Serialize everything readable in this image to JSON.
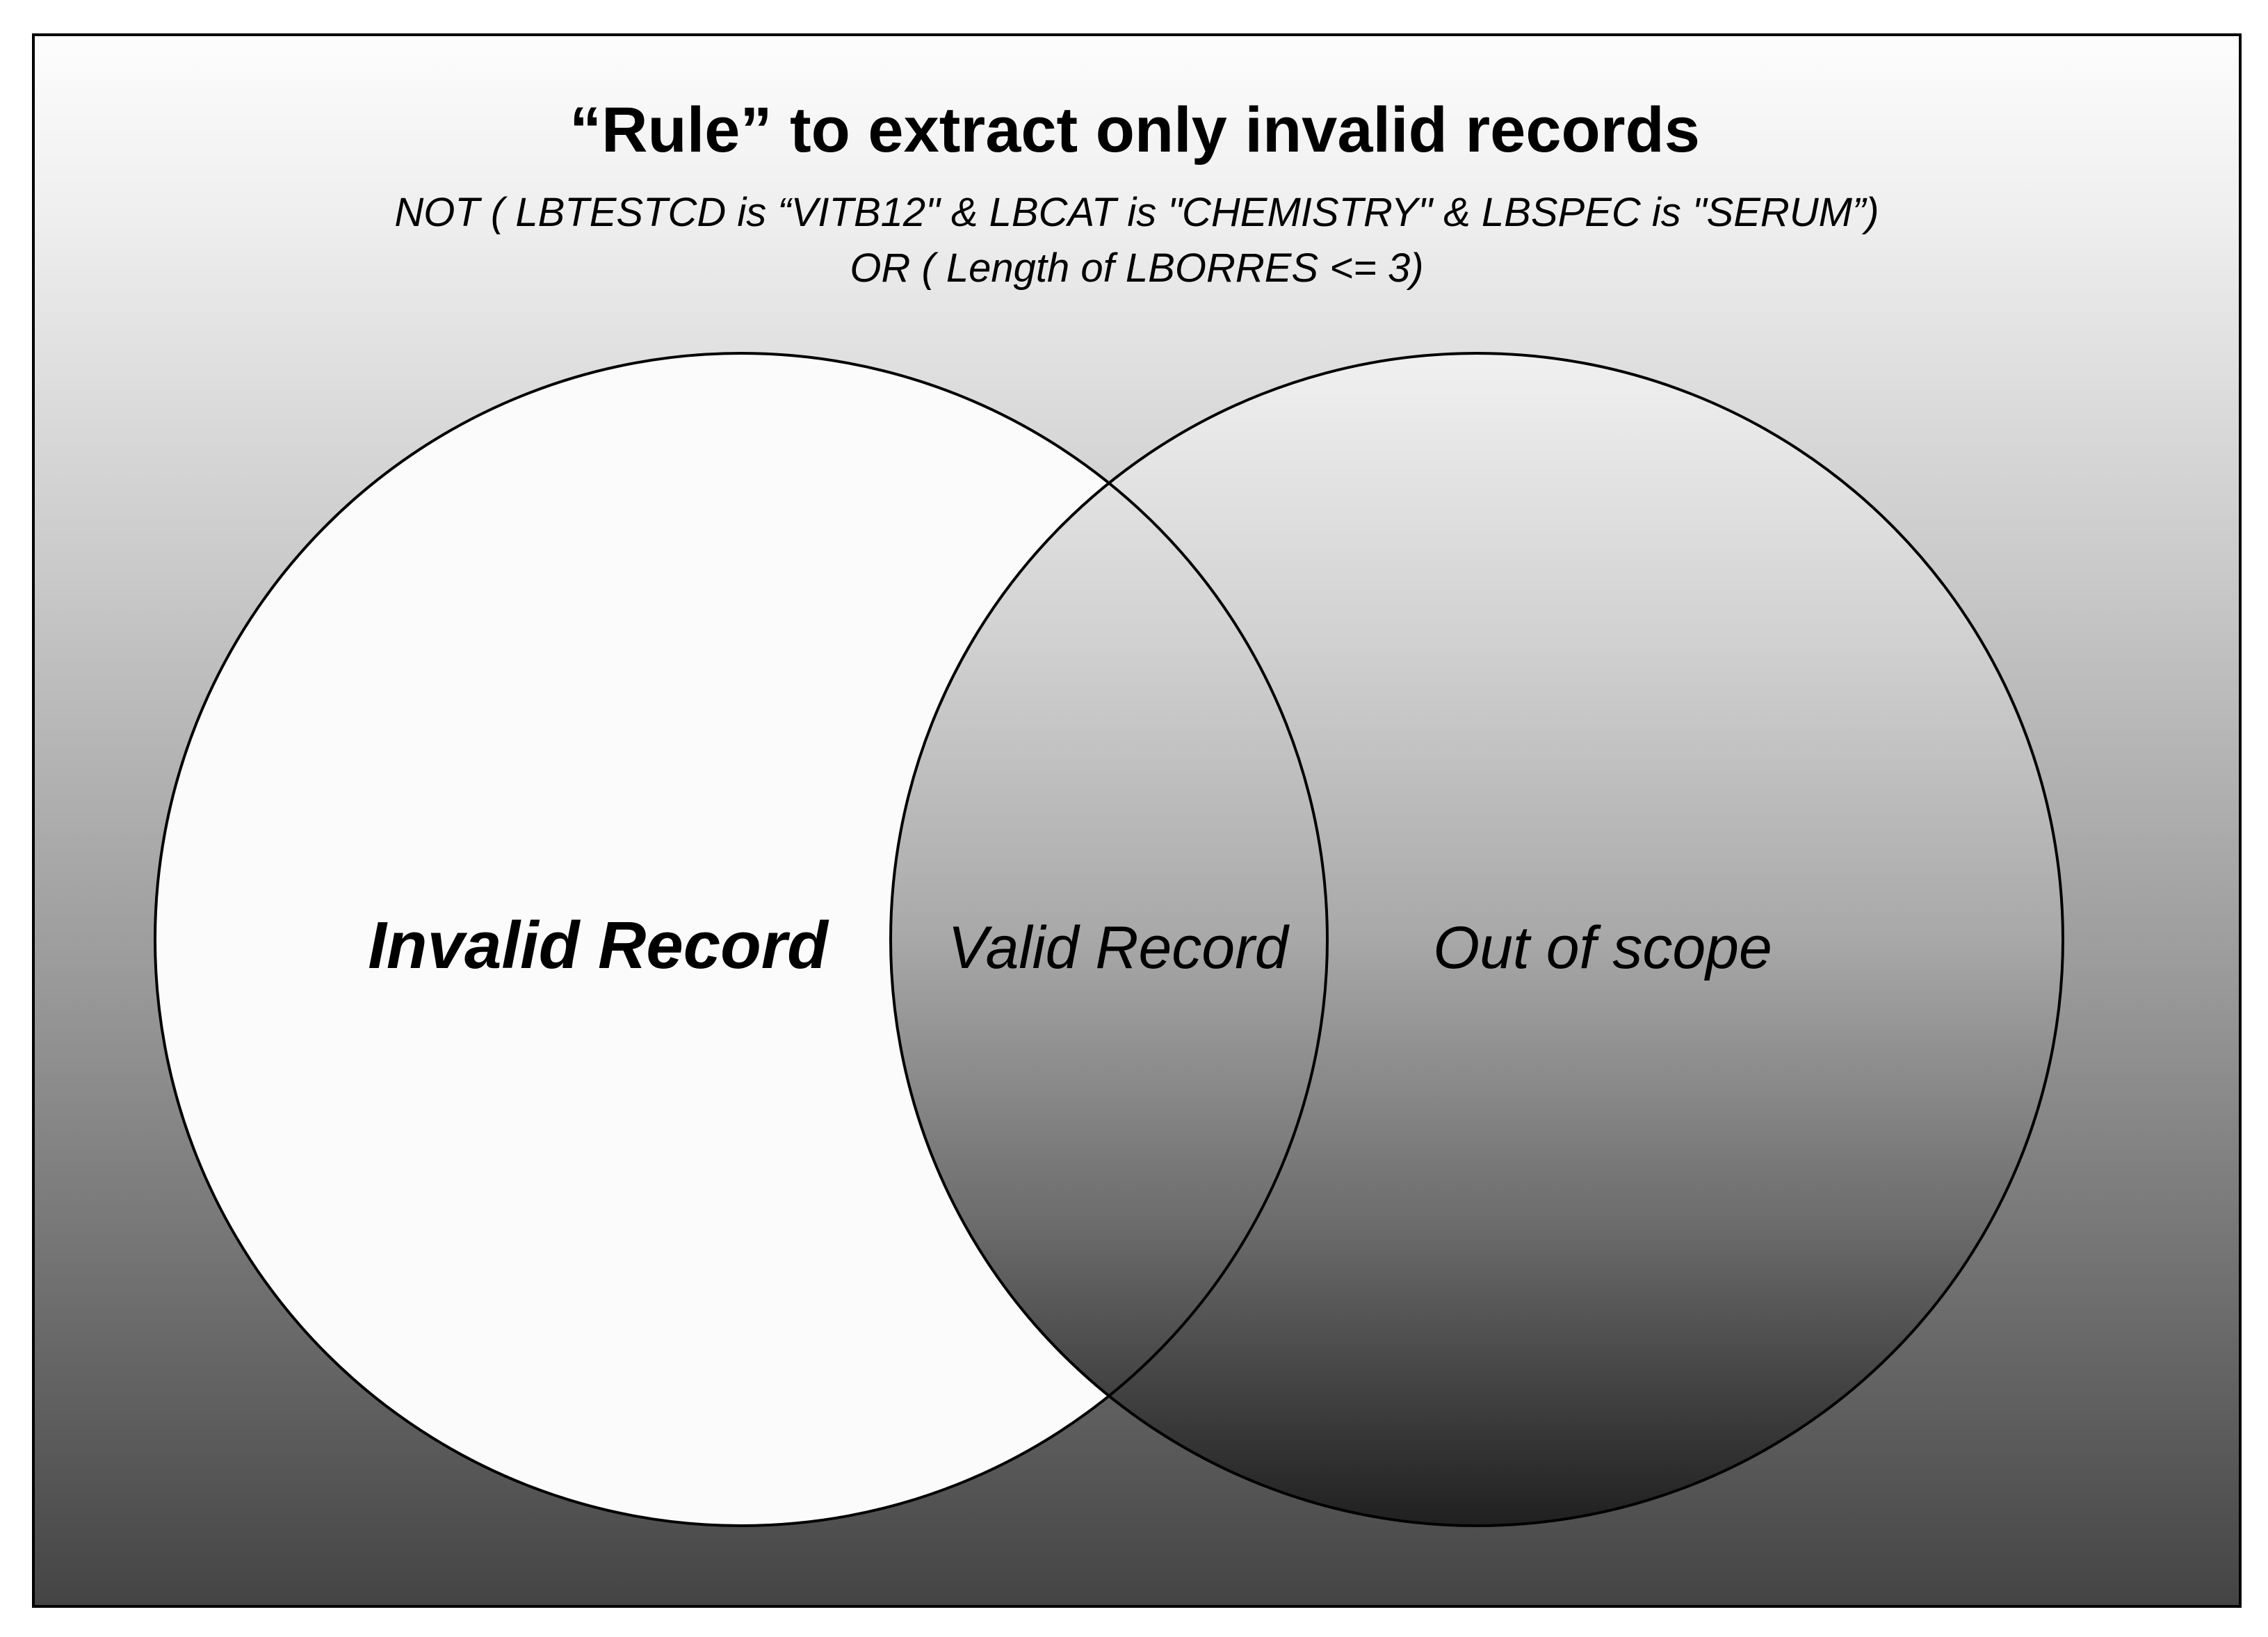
{
  "title": "“Rule” to extract only invalid records",
  "rule_line1": "NOT ( LBTESTCD  is “VITB12\" & LBCAT is \"CHEMISTRY\" & LBSPEC is \"SERUM”)",
  "rule_line2": "OR ( Length of LBORRES <= 3)",
  "regions": {
    "left": "Invalid Record",
    "overlap": "Valid Record",
    "right": "Out of scope"
  },
  "colors": {
    "background_top": "#fdfdfd",
    "background_bottom": "#444444",
    "left_circle_fill": "#fbfbfb",
    "right_circle_top": "#f0f0f0",
    "right_circle_bottom": "#202020",
    "stroke": "#000000"
  }
}
